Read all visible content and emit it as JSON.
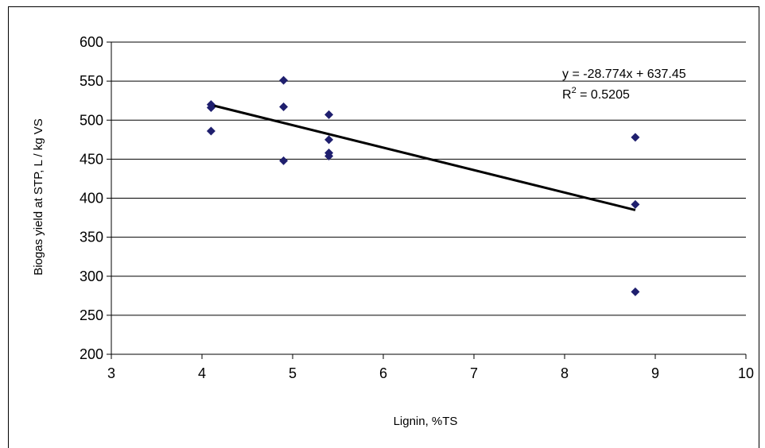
{
  "chart_data": {
    "type": "scatter",
    "xlabel": "Lignin, %TS",
    "ylabel": "Biogas yield at STP, L / kg VS",
    "xlim": [
      3,
      10
    ],
    "ylim": [
      200,
      600
    ],
    "xticks": [
      3,
      4,
      5,
      6,
      7,
      8,
      9,
      10
    ],
    "yticks": [
      200,
      250,
      300,
      350,
      400,
      450,
      500,
      550,
      600
    ],
    "grid": "horizontal",
    "marker_color": "#1f1f6e",
    "points": [
      {
        "x": 4.1,
        "y": 520
      },
      {
        "x": 4.1,
        "y": 516
      },
      {
        "x": 4.1,
        "y": 486
      },
      {
        "x": 4.9,
        "y": 551
      },
      {
        "x": 4.9,
        "y": 517
      },
      {
        "x": 4.9,
        "y": 448
      },
      {
        "x": 5.4,
        "y": 507
      },
      {
        "x": 5.4,
        "y": 475
      },
      {
        "x": 5.4,
        "y": 458
      },
      {
        "x": 5.4,
        "y": 454
      },
      {
        "x": 8.78,
        "y": 478
      },
      {
        "x": 8.78,
        "y": 392
      },
      {
        "x": 8.78,
        "y": 280
      }
    ],
    "trendline": {
      "slope": -28.774,
      "intercept": 637.45,
      "x_range": [
        4.1,
        8.78
      ],
      "equation_label": "y = -28.774x + 637.45",
      "r2_prefix": "R",
      "r2_exponent": "2",
      "r2_value": " = 0.5205"
    }
  }
}
